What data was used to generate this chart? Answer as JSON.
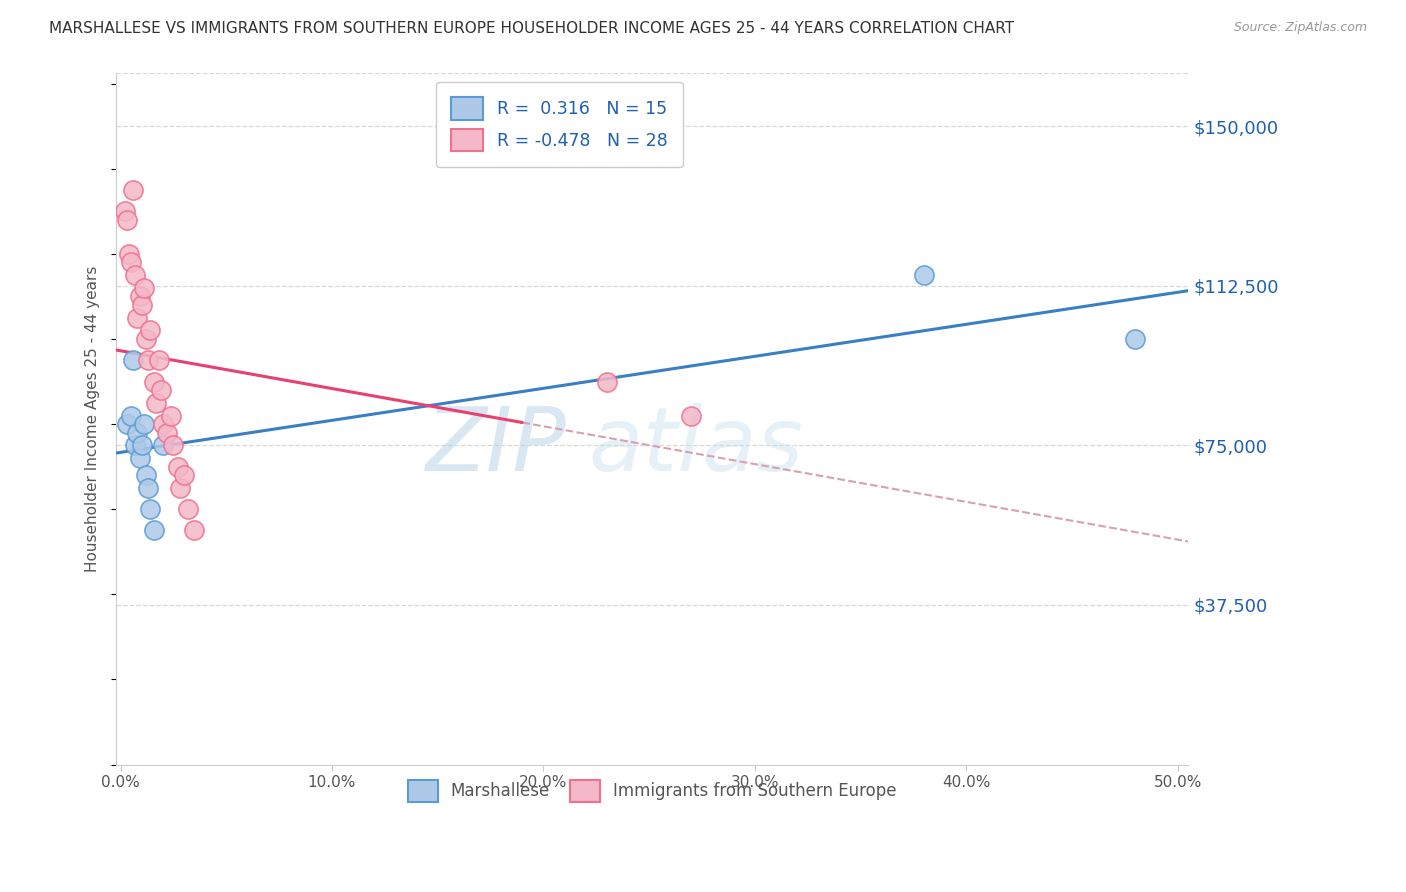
{
  "title": "MARSHALLESE VS IMMIGRANTS FROM SOUTHERN EUROPE HOUSEHOLDER INCOME AGES 25 - 44 YEARS CORRELATION CHART",
  "source": "Source: ZipAtlas.com",
  "ylabel": "Householder Income Ages 25 - 44 years",
  "ytick_labels": [
    "$37,500",
    "$75,000",
    "$112,500",
    "$150,000"
  ],
  "ytick_vals": [
    37500,
    75000,
    112500,
    150000
  ],
  "ylim_min": 0,
  "ylim_max": 162500,
  "xlim_min": -0.002,
  "xlim_max": 0.505,
  "xtick_vals": [
    0.0,
    0.1,
    0.2,
    0.3,
    0.4,
    0.5
  ],
  "xtick_labels": [
    "0.0%",
    "10.0%",
    "20.0%",
    "30.0%",
    "40.0%",
    "50.0%"
  ],
  "watermark_zip": "ZIP",
  "watermark_atlas": "atlas",
  "legend1_label": "Marshallese",
  "legend2_label": "Immigrants from Southern Europe",
  "R1_label": "R =  0.316",
  "N1_label": "N = 15",
  "R2_label": "R = -0.478",
  "N2_label": "N = 28",
  "blue_face": "#aec9e8",
  "blue_edge": "#5b9bd5",
  "pink_face": "#f4b8c8",
  "pink_edge": "#f07090",
  "blue_line": "#3a7fc1",
  "pink_line": "#e84070",
  "dash_color": "#d8a0b0",
  "title_color": "#333333",
  "source_color": "#999999",
  "axis_color": "#cccccc",
  "grid_color": "#d8d8d8",
  "bg_color": "#ffffff",
  "rn_text_color": "#2060b0",
  "bottom_text_color": "#555555",
  "marshallese_x": [
    0.003,
    0.005,
    0.006,
    0.007,
    0.008,
    0.009,
    0.01,
    0.011,
    0.012,
    0.013,
    0.014,
    0.016,
    0.02,
    0.38,
    0.48
  ],
  "marshallese_y": [
    80000,
    82000,
    95000,
    75000,
    78000,
    72000,
    75000,
    80000,
    68000,
    65000,
    60000,
    55000,
    75000,
    115000,
    100000
  ],
  "southern_europe_x": [
    0.002,
    0.003,
    0.004,
    0.005,
    0.006,
    0.007,
    0.008,
    0.009,
    0.01,
    0.011,
    0.012,
    0.013,
    0.014,
    0.016,
    0.017,
    0.018,
    0.019,
    0.02,
    0.022,
    0.024,
    0.025,
    0.027,
    0.028,
    0.03,
    0.032,
    0.035,
    0.23,
    0.27
  ],
  "southern_europe_y": [
    130000,
    128000,
    120000,
    118000,
    135000,
    115000,
    105000,
    110000,
    108000,
    112000,
    100000,
    95000,
    102000,
    90000,
    85000,
    95000,
    88000,
    80000,
    78000,
    82000,
    75000,
    70000,
    65000,
    68000,
    60000,
    55000,
    90000,
    82000
  ]
}
